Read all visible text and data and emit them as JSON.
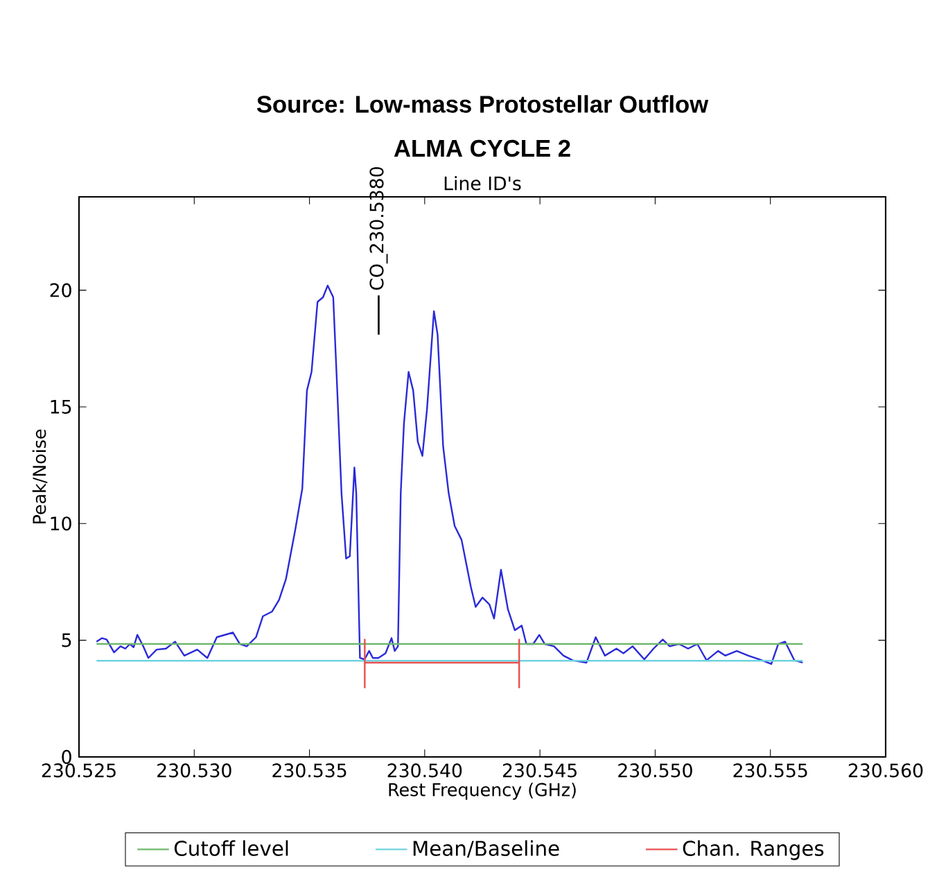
{
  "chart_data": {
    "type": "line",
    "title": "Source: Low-mass Protostellar Outflow",
    "subtitle": "ALMA CYCLE 2",
    "xlabel": "Rest Frequency (GHz)",
    "ylabel": "Peak/Noise",
    "annotations": [
      "Line ID's",
      "CO_230.5380"
    ],
    "xlim": [
      230.525,
      230.56
    ],
    "ylim": [
      0,
      24
    ],
    "xticks": [
      230.525,
      {
        "value": 230.53,
        "label": "230.530"
      },
      230.535,
      {
        "value": 230.54,
        "label": "230.540"
      },
      230.545,
      {
        "value": 230.55,
        "label": "230.550"
      },
      230.555,
      {
        "value": 230.56,
        "label": "230.560"
      }
    ],
    "yticks": [
      0,
      5,
      10,
      15,
      20
    ],
    "legend": "bottom",
    "marker": "none",
    "line_style": "solid",
    "series": [
      {
        "color": "#2a2ad8",
        "x": [
          230.52576,
          230.526,
          230.5262,
          230.52652,
          230.5268,
          230.52701,
          230.52721,
          230.52737,
          230.52753,
          230.52777,
          230.52801,
          230.52837,
          230.52877,
          230.52917,
          230.52957,
          230.53013,
          230.53057,
          230.53098,
          230.53168,
          230.53198,
          230.53228,
          230.53268,
          230.53298,
          230.53338,
          230.53368,
          230.53398,
          230.53438,
          230.53469,
          230.53489,
          230.53509,
          230.53535,
          230.53559,
          230.53579,
          230.53603,
          230.53619,
          230.53639,
          230.53659,
          230.53675,
          230.53695,
          230.53703,
          230.53719,
          230.53739,
          230.53759,
          230.53775,
          230.53799,
          230.5383,
          230.53856,
          230.5387,
          230.53884,
          230.53896,
          230.5391,
          230.5393,
          230.5395,
          230.5397,
          230.5399,
          230.5401,
          230.5404,
          230.54056,
          230.5408,
          230.54104,
          230.5413,
          230.5416,
          230.5418,
          230.542,
          230.54221,
          230.54251,
          230.54281,
          230.54301,
          230.54331,
          230.54361,
          230.54391,
          230.54421,
          230.54441,
          230.54471,
          230.54497,
          230.54521,
          230.54561,
          230.54602,
          230.54642,
          230.54702,
          230.54742,
          230.54782,
          230.54832,
          230.54862,
          230.54902,
          230.54953,
          230.54993,
          230.55033,
          230.55063,
          230.55103,
          230.55143,
          230.55183,
          230.55223,
          230.55273,
          230.55304,
          230.55354,
          230.55404,
          230.55464,
          230.55504,
          230.55534,
          230.55564,
          230.55604,
          230.5564
        ],
        "values": [
          4.94,
          5.09,
          5.03,
          4.48,
          4.74,
          4.64,
          4.84,
          4.7,
          5.23,
          4.78,
          4.24,
          4.6,
          4.64,
          4.94,
          4.34,
          4.6,
          4.24,
          5.13,
          5.33,
          4.84,
          4.74,
          5.13,
          6.03,
          6.23,
          6.73,
          7.62,
          9.71,
          11.5,
          15.7,
          16.5,
          19.5,
          19.7,
          20.2,
          19.7,
          16.1,
          11.3,
          8.5,
          8.6,
          12.4,
          11.3,
          4.24,
          4.18,
          4.54,
          4.24,
          4.24,
          4.44,
          5.09,
          4.54,
          4.74,
          11.3,
          14.3,
          16.5,
          15.7,
          13.5,
          12.9,
          14.9,
          19.1,
          18.1,
          13.3,
          11.3,
          9.9,
          9.3,
          8.3,
          7.3,
          6.43,
          6.83,
          6.53,
          5.93,
          8.02,
          6.33,
          5.43,
          5.63,
          4.84,
          4.84,
          5.23,
          4.84,
          4.74,
          4.34,
          4.14,
          4.04,
          5.13,
          4.34,
          4.64,
          4.44,
          4.74,
          4.18,
          4.64,
          5.03,
          4.74,
          4.84,
          4.64,
          4.84,
          4.14,
          4.54,
          4.34,
          4.54,
          4.34,
          4.14,
          3.98,
          4.84,
          4.94,
          4.14,
          4.04
        ]
      },
      {
        "name": "Cutoff level",
        "color": "#6cb86c",
        "x": [
          230.52576,
          230.5564
        ],
        "values": [
          4.84,
          4.84
        ]
      },
      {
        "name": "Mean/Baseline",
        "color": "#6fd3e0",
        "x": [
          230.52576,
          230.5564
        ],
        "values": [
          4.12,
          4.12
        ]
      },
      {
        "name": "Chan. Ranges",
        "color": "#e85050",
        "x": [
          230.5374,
          230.5374,
          230.5374,
          230.5441,
          230.5441,
          230.5441
        ],
        "values": [
          2.95,
          5.03,
          4.04,
          4.04,
          5.03,
          2.95
        ]
      }
    ]
  }
}
